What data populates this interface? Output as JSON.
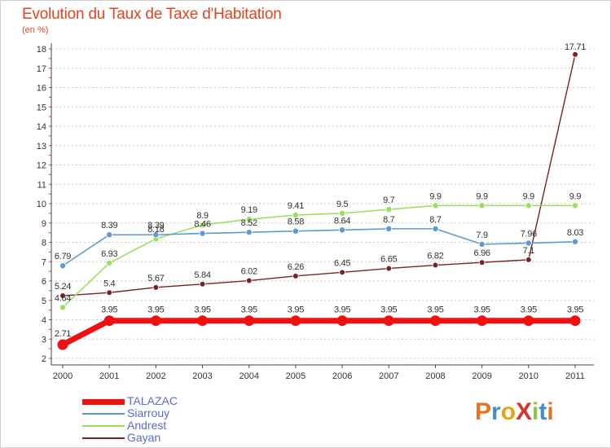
{
  "header": {
    "title": "Evolution du Taux de Taxe d'Habitation",
    "subtitle": "(en %)"
  },
  "logo": {
    "letters": [
      {
        "ch": "P",
        "color": "#e8721e"
      },
      {
        "ch": "r",
        "color": "#3e8fd1"
      },
      {
        "ch": "o",
        "color": "#e3a31a"
      },
      {
        "ch": "X",
        "color": "#d6332a"
      },
      {
        "ch": "i",
        "color": "#8cc63f"
      },
      {
        "ch": "t",
        "color": "#3e8fd1"
      },
      {
        "ch": "i",
        "color": "#e8721e"
      }
    ]
  },
  "chart_data": {
    "type": "line",
    "x": [
      "2000",
      "2001",
      "2002",
      "2003",
      "2004",
      "2005",
      "2006",
      "2007",
      "2008",
      "2009",
      "2010",
      "2011"
    ],
    "ylim": [
      2,
      18
    ],
    "yticks": [
      2,
      3,
      4,
      5,
      6,
      7,
      8,
      9,
      10,
      11,
      12,
      13,
      14,
      15,
      16,
      17,
      18
    ],
    "grid": "horizontal dashed",
    "legend_position": "bottom-left",
    "series": [
      {
        "name": "TALAZAC",
        "color": "#ee1111",
        "values": [
          2.71,
          3.95,
          3.95,
          3.95,
          3.95,
          3.95,
          3.95,
          3.95,
          3.95,
          3.95,
          3.95,
          3.95
        ],
        "labels": [
          "2.71",
          "3.95",
          "3.95",
          "3.95",
          "3.95",
          "3.95",
          "3.95",
          "3.95",
          "3.95",
          "3.95",
          "3.95",
          "3.95"
        ]
      },
      {
        "name": "Siarrouy",
        "color": "#5b9bd5",
        "values": [
          6.79,
          8.39,
          8.39,
          8.46,
          8.52,
          8.58,
          8.64,
          8.7,
          8.7,
          7.9,
          7.96,
          8.03
        ],
        "labels": [
          "6.79",
          "8.39",
          "8.39",
          "8.46",
          "8.52",
          "8.58",
          "8.64",
          "8.7",
          "8.7",
          "7.9",
          "7.96",
          "8.03"
        ]
      },
      {
        "name": "Andrest",
        "color": "#99e05a",
        "values": [
          4.64,
          6.93,
          8.18,
          8.9,
          9.19,
          9.41,
          9.5,
          9.7,
          9.9,
          9.9,
          9.9,
          9.9
        ],
        "labels": [
          "4.64",
          "6.93",
          "8.18",
          "8.9",
          "9.19",
          "9.41",
          "9.5",
          "9.7",
          "9.9",
          "9.9",
          "9.9",
          "9.9"
        ]
      },
      {
        "name": "Gayan",
        "color": "#7a2222",
        "values": [
          5.24,
          5.4,
          5.67,
          5.84,
          6.02,
          6.26,
          6.45,
          6.65,
          6.82,
          6.96,
          7.1,
          17.71
        ],
        "labels": [
          "5.24",
          "5.4",
          "5.67",
          "5.84",
          "6.02",
          "6.26",
          "6.45",
          "6.65",
          "6.82",
          "6.96",
          "7.1",
          "17.71"
        ]
      }
    ]
  }
}
